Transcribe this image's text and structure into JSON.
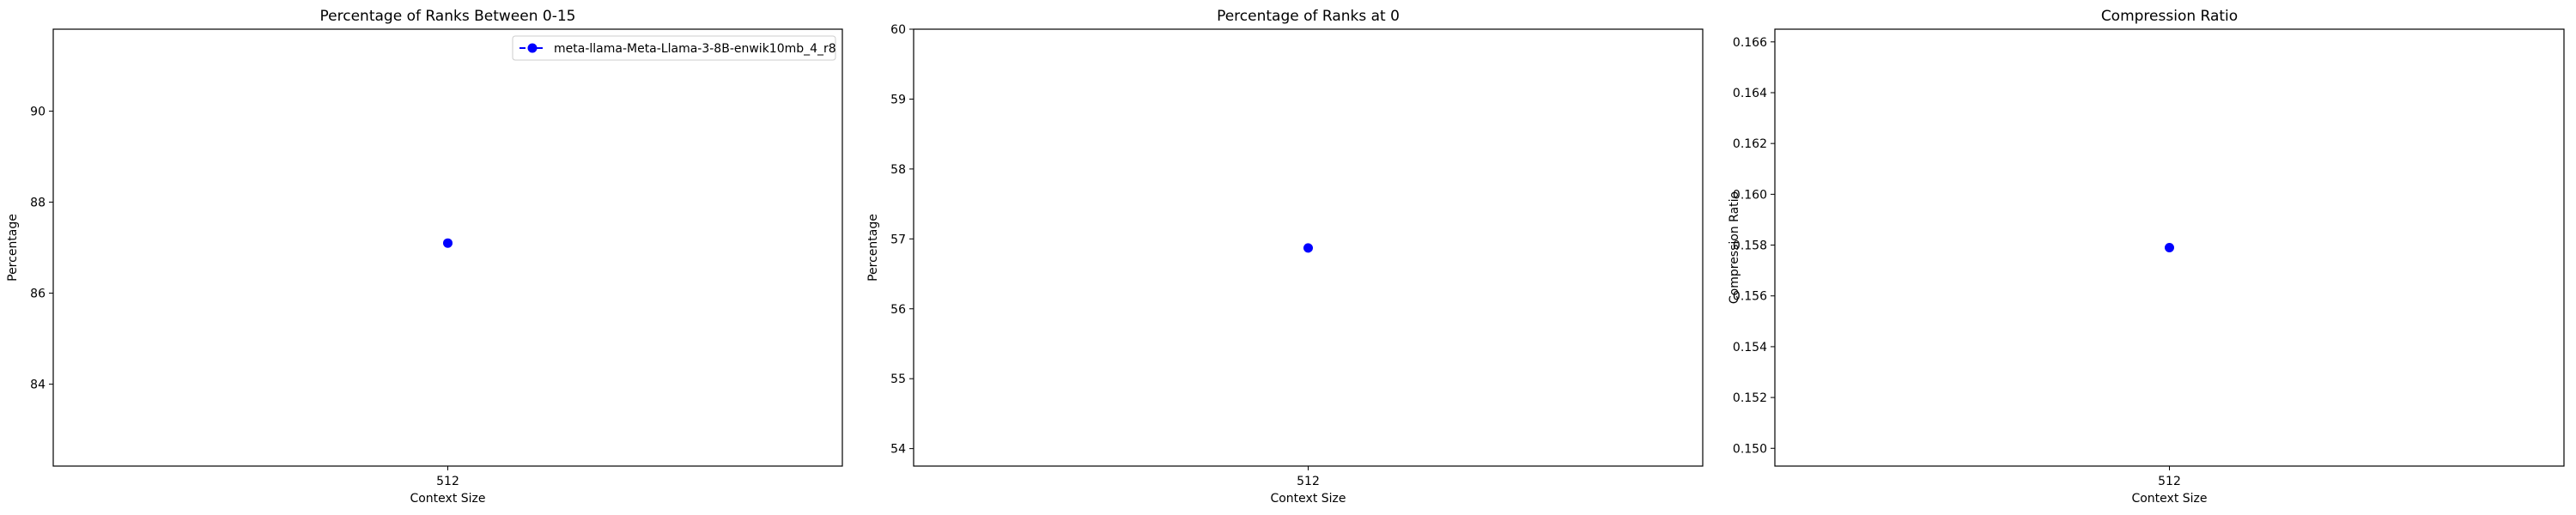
{
  "chart_data": [
    {
      "type": "scatter",
      "title": "Percentage of Ranks Between 0-15",
      "xlabel": "Context Size",
      "ylabel": "Percentage",
      "categories": [
        "512"
      ],
      "ylim": [
        82.2,
        91.8
      ],
      "yticks": [
        84,
        86,
        88,
        90
      ],
      "ytick_labels": [
        "84",
        "86",
        "88",
        "90"
      ],
      "grid": false,
      "legend": "top-right",
      "series": [
        {
          "name": "meta-llama-Meta-Llama-3-8B-enwik10mb_4_r8",
          "values": [
            87.1
          ],
          "color": "#0000ff"
        }
      ]
    },
    {
      "type": "scatter",
      "title": "Percentage of Ranks at 0",
      "xlabel": "Context Size",
      "ylabel": "Percentage",
      "categories": [
        "512"
      ],
      "ylim": [
        53.75,
        60.0
      ],
      "yticks": [
        54,
        55,
        56,
        57,
        58,
        59,
        60
      ],
      "ytick_labels": [
        "54",
        "55",
        "56",
        "57",
        "58",
        "59",
        "60"
      ],
      "grid": false,
      "series": [
        {
          "values": [
            56.87
          ],
          "color": "#0000ff"
        }
      ]
    },
    {
      "type": "scatter",
      "title": "Compression Ratio",
      "xlabel": "Context Size",
      "ylabel": "Compression Ratio",
      "categories": [
        "512"
      ],
      "ylim": [
        0.1493,
        0.1665
      ],
      "yticks": [
        0.15,
        0.152,
        0.154,
        0.156,
        0.158,
        0.16,
        0.162,
        0.164,
        0.166
      ],
      "ytick_labels": [
        "0.150",
        "0.152",
        "0.154",
        "0.156",
        "0.158",
        "0.160",
        "0.162",
        "0.164",
        "0.166"
      ],
      "grid": false,
      "series": [
        {
          "values": [
            0.1579
          ],
          "color": "#0000ff"
        }
      ]
    }
  ]
}
